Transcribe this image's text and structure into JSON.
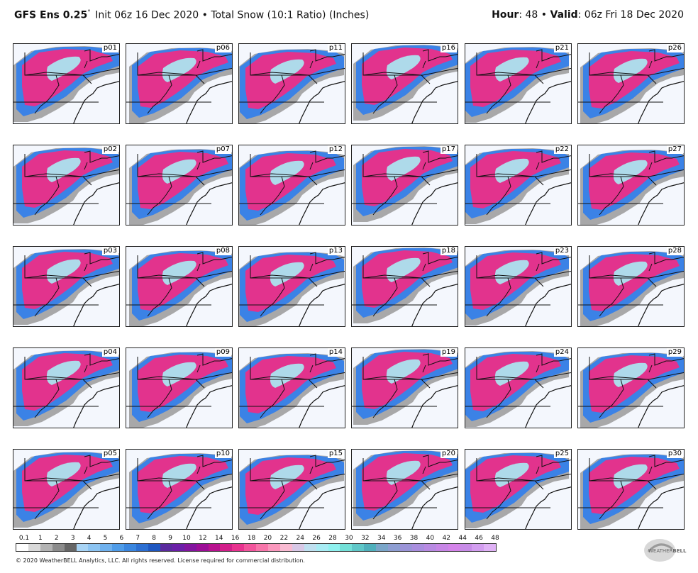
{
  "header": {
    "model": "GFS Ens 0.25",
    "degree_symbol": "°",
    "init_text": "Init 06z 16 Dec 2020",
    "separator": "•",
    "product": "Total Snow (10:1 Ratio) (Inches)",
    "hour_label": "Hour",
    "hour_value": ": 48",
    "valid_label": "Valid",
    "valid_value": ": 06z Fri 18 Dec 2020"
  },
  "panels": [
    [
      "p01",
      "p06",
      "p11",
      "p16",
      "p21",
      "p26"
    ],
    [
      "p02",
      "p07",
      "p12",
      "p17",
      "p22",
      "p27"
    ],
    [
      "p03",
      "p08",
      "p13",
      "p18",
      "p23",
      "p28"
    ],
    [
      "p04",
      "p09",
      "p14",
      "p19",
      "p24",
      "p29"
    ],
    [
      "p05",
      "p10",
      "p15",
      "p20",
      "p25",
      "p30"
    ]
  ],
  "scale": {
    "ticks": [
      "0.1",
      "1",
      "2",
      "3",
      "4",
      "5",
      "6",
      "7",
      "8",
      "9",
      "10",
      "12",
      "14",
      "16",
      "18",
      "20",
      "22",
      "24",
      "26",
      "28",
      "30",
      "32",
      "34",
      "36",
      "38",
      "40",
      "42",
      "44",
      "46",
      "48"
    ],
    "colors": [
      "#ffffff",
      "#d9d9d9",
      "#b3b3b3",
      "#8c8c8c",
      "#666666",
      "#a8d4f5",
      "#8cc4f2",
      "#6fb1ee",
      "#4f9ce8",
      "#3a86df",
      "#2c6fd2",
      "#1e57c0",
      "#5a2a9e",
      "#6b1fa8",
      "#82159f",
      "#9c0e97",
      "#b8128f",
      "#d21f8a",
      "#e8338f",
      "#f2559c",
      "#f776aa",
      "#fa98bd",
      "#f9bbd2",
      "#d8c8e6",
      "#bfe0f0",
      "#a8ecf4",
      "#8ff1ef",
      "#73e0d8",
      "#5fc7c8",
      "#4fb0bc",
      "#7aa6c9",
      "#8e9ed2",
      "#9b94d8",
      "#a98ede",
      "#b88ae2",
      "#c786e6",
      "#d484ea",
      "#c88ce8",
      "#d39ef0",
      "#e0b2f6"
    ]
  },
  "footer": {
    "copyright": "© 2020 WeatherBELL Analytics, LLC. All rights reserved. License required for commercial distribution."
  },
  "logo": {
    "text_prefix": "WEATHER",
    "text_bold": "BELL"
  }
}
